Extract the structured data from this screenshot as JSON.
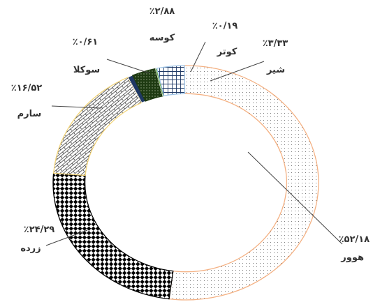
{
  "chart_data": {
    "type": "pie",
    "donut": true,
    "slices": [
      {
        "label": "هوور",
        "value_label": "٪۵۲/۱۸",
        "value": 52.18,
        "pattern": "dots",
        "color": "#f4b183"
      },
      {
        "label": "زرده",
        "value_label": "٪۲۴/۲۹",
        "value": 24.29,
        "pattern": "checker",
        "color": "#000000"
      },
      {
        "label": "سارم",
        "value_label": "٪۱۶/۵۲",
        "value": 16.52,
        "pattern": "bricks",
        "color": "#f2d479"
      },
      {
        "label": "سوکلا",
        "value_label": "٪۰/۶۱",
        "value": 0.61,
        "pattern": "solid",
        "color": "#1f3864"
      },
      {
        "label": "کوسه",
        "value_label": "٪۲/۸۸",
        "value": 2.88,
        "pattern": "dark-dots",
        "color": "#1e3b12"
      },
      {
        "label": "کوتر",
        "value_label": "٪۰/۱۹",
        "value": 0.19,
        "pattern": "solid",
        "color": "#70ad47"
      },
      {
        "label": "شیر",
        "value_label": "٪۳/۳۳",
        "value": 3.33,
        "pattern": "grid",
        "color": "#9dc3e6"
      }
    ],
    "title": "",
    "legend": "none"
  }
}
